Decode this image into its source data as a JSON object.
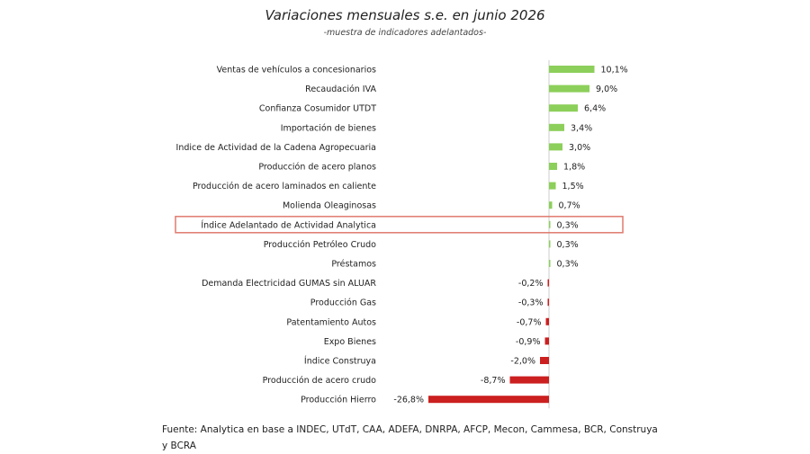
{
  "chart_data": {
    "type": "bar",
    "orientation": "horizontal",
    "title": "Variaciones mensuales s.e. en junio 2026",
    "subtitle": "-muestra de indicadores adelantados-",
    "categories": [
      "Ventas de vehículos a concesionarios",
      "Recaudación IVA",
      "Confianza Cosumidor UTDT",
      "Importación de bienes",
      "Indice de Actividad de la Cadena Agropecuaria",
      "Producción de acero planos",
      "Producción de acero laminados en caliente",
      "Molienda Oleaginosas",
      "Índice Adelantado de Actividad Analytica",
      "Producción Petróleo Crudo",
      "Préstamos",
      "Demanda Electricidad GUMAS sin ALUAR",
      "Producción Gas",
      "Patentamiento Autos",
      "Expo Bienes",
      "Índice Construya",
      "Producción de acero crudo",
      "Producción Hierro"
    ],
    "values": [
      10.1,
      9.0,
      6.4,
      3.4,
      3.0,
      1.8,
      1.5,
      0.7,
      0.3,
      0.3,
      0.3,
      -0.2,
      -0.3,
      -0.7,
      -0.9,
      -2.0,
      -8.7,
      -26.8
    ],
    "value_labels": [
      "10,1%",
      "9,0%",
      "6,4%",
      "3,4%",
      "3,0%",
      "1,8%",
      "1,5%",
      "0,7%",
      "0,3%",
      "0,3%",
      "0,3%",
      "-0,2%",
      "-0,3%",
      "-0,7%",
      "-0,9%",
      "-2,0%",
      "-8,7%",
      "-26,8%"
    ],
    "highlighted_category": "Índice Adelantado de Actividad Analytica",
    "xlim": [
      -26.8,
      10.1
    ],
    "grid": false,
    "legend": "none"
  },
  "colors": {
    "positive": "#8ccf5a",
    "negative": "#cc1f1f",
    "highlight_border": "#e07a6e",
    "axis": "#cccccc"
  },
  "source": "Fuente: Analytica en base a INDEC, UTdT, CAA, ADEFA, DNRPA, AFCP, Mecon, Cammesa, BCR, Construya y BCRA"
}
